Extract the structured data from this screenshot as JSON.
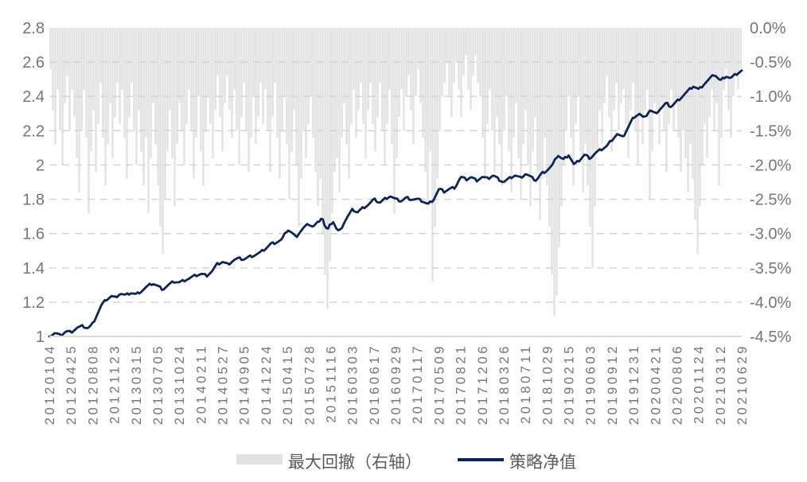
{
  "colors": {
    "background": "#ffffff",
    "drawdown_bar": "#e2e2e2",
    "net_value_line": "#0e2356",
    "gridline": "#d2d2d2",
    "axis_line": "#d9d9d9",
    "axis_label": "#757575",
    "legend_text": "#5a5a5a"
  },
  "chart_data": {
    "type": "line+bar",
    "title": "",
    "grid": "dashed horizontal",
    "legend_position": "bottom-center",
    "legend": [
      {
        "label": "最大回撤（右轴）",
        "series_type": "bar",
        "axis": "right"
      },
      {
        "label": "策略净值",
        "series_type": "line",
        "axis": "left"
      }
    ],
    "left_axis": {
      "min": 1.0,
      "max": 2.8,
      "step": 0.2,
      "ticks": [
        "2.8",
        "2.6",
        "2.4",
        "2.2",
        "2",
        "1.8",
        "1.6",
        "1.4",
        "1.2",
        "1"
      ]
    },
    "right_axis": {
      "min": -4.5,
      "max": 0.0,
      "step": -0.5,
      "unit": "%",
      "ticks": [
        "0.0%",
        "-0.5%",
        "-1.0%",
        "-1.5%",
        "-2.0%",
        "-2.5%",
        "-3.0%",
        "-3.5%",
        "-4.0%",
        "-4.5%"
      ]
    },
    "x_labels": [
      "20120104",
      "20120425",
      "20120808",
      "20121123",
      "20130315",
      "20130705",
      "20131024",
      "20140211",
      "20140527",
      "20140905",
      "20141224",
      "20150415",
      "20150728",
      "20151116",
      "20160303",
      "20160617",
      "20160929",
      "20170117",
      "20170509",
      "20170821",
      "20171206",
      "20180326",
      "20180711",
      "20181029",
      "20190215",
      "20190603",
      "20190912",
      "20191231",
      "20200421",
      "20200806",
      "20201124",
      "20210312",
      "20210629"
    ],
    "net_value": {
      "name": "策略净值",
      "points": [
        [
          0.0,
          1.0
        ],
        [
          0.008,
          1.02
        ],
        [
          0.016,
          1.005
        ],
        [
          0.024,
          1.03
        ],
        [
          0.031,
          1.025
        ],
        [
          0.04,
          1.05
        ],
        [
          0.048,
          1.06
        ],
        [
          0.056,
          1.048
        ],
        [
          0.062,
          1.07
        ],
        [
          0.068,
          1.12
        ],
        [
          0.075,
          1.18
        ],
        [
          0.082,
          1.215
        ],
        [
          0.09,
          1.235
        ],
        [
          0.094,
          1.225
        ],
        [
          0.102,
          1.25
        ],
        [
          0.11,
          1.24
        ],
        [
          0.118,
          1.255
        ],
        [
          0.125,
          1.245
        ],
        [
          0.133,
          1.265
        ],
        [
          0.141,
          1.29
        ],
        [
          0.149,
          1.31
        ],
        [
          0.156,
          1.295
        ],
        [
          0.164,
          1.275
        ],
        [
          0.172,
          1.3
        ],
        [
          0.18,
          1.32
        ],
        [
          0.188,
          1.315
        ],
        [
          0.196,
          1.33
        ],
        [
          0.203,
          1.34
        ],
        [
          0.211,
          1.355
        ],
        [
          0.219,
          1.365
        ],
        [
          0.227,
          1.355
        ],
        [
          0.235,
          1.38
        ],
        [
          0.242,
          1.42
        ],
        [
          0.25,
          1.435
        ],
        [
          0.258,
          1.42
        ],
        [
          0.266,
          1.445
        ],
        [
          0.273,
          1.455
        ],
        [
          0.281,
          1.45
        ],
        [
          0.289,
          1.465
        ],
        [
          0.297,
          1.475
        ],
        [
          0.305,
          1.49
        ],
        [
          0.313,
          1.515
        ],
        [
          0.32,
          1.54
        ],
        [
          0.328,
          1.55
        ],
        [
          0.336,
          1.565
        ],
        [
          0.344,
          1.625
        ],
        [
          0.35,
          1.605
        ],
        [
          0.356,
          1.58
        ],
        [
          0.363,
          1.615
        ],
        [
          0.369,
          1.64
        ],
        [
          0.375,
          1.655
        ],
        [
          0.381,
          1.64
        ],
        [
          0.388,
          1.665
        ],
        [
          0.394,
          1.7
        ],
        [
          0.398,
          1.64
        ],
        [
          0.402,
          1.62
        ],
        [
          0.406,
          1.655
        ],
        [
          0.41,
          1.67
        ],
        [
          0.415,
          1.625
        ],
        [
          0.419,
          1.61
        ],
        [
          0.425,
          1.66
        ],
        [
          0.431,
          1.7
        ],
        [
          0.438,
          1.74
        ],
        [
          0.445,
          1.725
        ],
        [
          0.453,
          1.75
        ],
        [
          0.461,
          1.77
        ],
        [
          0.469,
          1.8
        ],
        [
          0.477,
          1.78
        ],
        [
          0.484,
          1.8
        ],
        [
          0.492,
          1.82
        ],
        [
          0.5,
          1.8
        ],
        [
          0.508,
          1.79
        ],
        [
          0.516,
          1.81
        ],
        [
          0.523,
          1.8
        ],
        [
          0.531,
          1.8
        ],
        [
          0.539,
          1.79
        ],
        [
          0.547,
          1.77
        ],
        [
          0.555,
          1.8
        ],
        [
          0.563,
          1.86
        ],
        [
          0.57,
          1.845
        ],
        [
          0.578,
          1.86
        ],
        [
          0.586,
          1.87
        ],
        [
          0.594,
          1.93
        ],
        [
          0.602,
          1.915
        ],
        [
          0.609,
          1.93
        ],
        [
          0.617,
          1.91
        ],
        [
          0.625,
          1.93
        ],
        [
          0.633,
          1.92
        ],
        [
          0.641,
          1.94
        ],
        [
          0.648,
          1.92
        ],
        [
          0.656,
          1.9
        ],
        [
          0.664,
          1.92
        ],
        [
          0.672,
          1.94
        ],
        [
          0.68,
          1.925
        ],
        [
          0.688,
          1.95
        ],
        [
          0.695,
          1.93
        ],
        [
          0.703,
          1.91
        ],
        [
          0.711,
          1.95
        ],
        [
          0.719,
          1.97
        ],
        [
          0.727,
          2.0
        ],
        [
          0.734,
          2.06
        ],
        [
          0.742,
          2.03
        ],
        [
          0.75,
          2.06
        ],
        [
          0.758,
          2.0
        ],
        [
          0.766,
          2.03
        ],
        [
          0.773,
          2.06
        ],
        [
          0.781,
          2.04
        ],
        [
          0.789,
          2.07
        ],
        [
          0.797,
          2.09
        ],
        [
          0.805,
          2.11
        ],
        [
          0.813,
          2.15
        ],
        [
          0.82,
          2.18
        ],
        [
          0.828,
          2.16
        ],
        [
          0.836,
          2.22
        ],
        [
          0.844,
          2.28
        ],
        [
          0.852,
          2.3
        ],
        [
          0.859,
          2.27
        ],
        [
          0.867,
          2.32
        ],
        [
          0.875,
          2.3
        ],
        [
          0.883,
          2.33
        ],
        [
          0.891,
          2.36
        ],
        [
          0.898,
          2.34
        ],
        [
          0.906,
          2.37
        ],
        [
          0.914,
          2.4
        ],
        [
          0.922,
          2.43
        ],
        [
          0.93,
          2.46
        ],
        [
          0.938,
          2.44
        ],
        [
          0.945,
          2.47
        ],
        [
          0.953,
          2.5
        ],
        [
          0.961,
          2.53
        ],
        [
          0.969,
          2.49
        ],
        [
          0.977,
          2.52
        ],
        [
          0.984,
          2.505
        ],
        [
          0.992,
          2.53
        ],
        [
          1.0,
          2.55
        ]
      ]
    },
    "drawdown": {
      "name": "最大回撤（右轴）",
      "unit": "%",
      "values": [
        -0.6,
        -1.2,
        -1.7,
        -0.9,
        -1.5,
        -2.0,
        -1.1,
        -0.7,
        -1.5,
        -0.9,
        -1.3,
        -1.9,
        -2.4,
        -1.5,
        -0.9,
        -1.6,
        -2.7,
        -1.8,
        -1.2,
        -2.1,
        -1.4,
        -0.8,
        -1.6,
        -2.3,
        -1.7,
        -1.1,
        -1.9,
        -1.3,
        -0.8,
        -1.4,
        -0.9,
        -1.6,
        -2.2,
        -1.3,
        -0.8,
        -1.5,
        -2.0,
        -1.2,
        -1.8,
        -2.3,
        -1.6,
        -2.7,
        -1.9,
        -1.1,
        -1.7,
        -2.3,
        -2.9,
        -3.3,
        -2.5,
        -1.8,
        -1.2,
        -1.9,
        -2.6,
        -1.7,
        -1.1,
        -1.5,
        -2.0,
        -1.4,
        -0.9,
        -1.5,
        -2.2,
        -1.6,
        -1.0,
        -1.8,
        -2.3,
        -1.5,
        -1.0,
        -1.4,
        -1.9,
        -1.2,
        -0.7,
        -1.3,
        -1.8,
        -1.1,
        -0.7,
        -1.2,
        -1.6,
        -0.9,
        -1.5,
        -2.0,
        -1.3,
        -0.8,
        -1.5,
        -2.1,
        -1.6,
        -1.0,
        -1.7,
        -1.3,
        -0.8,
        -1.4,
        -0.9,
        -1.5,
        -2.1,
        -1.3,
        -0.8,
        -1.6,
        -2.2,
        -1.5,
        -1.0,
        -1.7,
        -2.5,
        -1.8,
        -1.2,
        -2.0,
        -2.9,
        -2.2,
        -1.5,
        -1.9,
        -1.4,
        -1.0,
        -1.6,
        -2.1,
        -2.6,
        -2.2,
        -3.0,
        -3.6,
        -4.1,
        -3.4,
        -2.7,
        -2.1,
        -1.9,
        -2.4,
        -1.6,
        -1.1,
        -1.7,
        -2.2,
        -1.4,
        -0.9,
        -1.6,
        -1.2,
        -0.8,
        -1.4,
        -1.9,
        -1.2,
        -0.8,
        -1.4,
        -1.8,
        -1.3,
        -0.8,
        -1.5,
        -2.0,
        -1.4,
        -0.9,
        -1.7,
        -2.7,
        -1.9,
        -1.3,
        -0.9,
        -1.5,
        -1.0,
        -0.7,
        -1.2,
        -1.7,
        -1.0,
        -0.6,
        -1.1,
        -1.6,
        -2.1,
        -2.6,
        -1.8,
        -3.7,
        -2.9,
        -2.2,
        -1.5,
        -1.0,
        -0.8,
        -0.5,
        -1.0,
        -1.3,
        -0.8,
        -0.5,
        -0.9,
        -1.3,
        -0.7,
        -0.4,
        -0.9,
        -1.2,
        -0.7,
        -0.4,
        -0.8,
        -1.0,
        -1.6,
        -2.2,
        -1.4,
        -0.9,
        -1.5,
        -2.1,
        -1.3,
        -1.7,
        -2.3,
        -1.5,
        -1.0,
        -1.8,
        -2.4,
        -1.6,
        -1.1,
        -1.9,
        -2.5,
        -1.7,
        -1.2,
        -2.0,
        -2.6,
        -1.8,
        -1.3,
        -2.1,
        -2.8,
        -2.2,
        -1.6,
        -2.3,
        -2.9,
        -3.6,
        -4.2,
        -3.9,
        -3.2,
        -2.6,
        -2.0,
        -1.5,
        -1.0,
        -1.6,
        -2.3,
        -1.4,
        -1.0,
        -1.8,
        -2.4,
        -1.7,
        -2.3,
        -2.9,
        -3.5,
        -2.6,
        -1.8,
        -1.2,
        -1.7,
        -1.1,
        -0.7,
        -1.3,
        -1.8,
        -1.2,
        -0.8,
        -1.5,
        -1.1,
        -0.9,
        -1.4,
        -1.9,
        -1.2,
        -0.8,
        -1.5,
        -2.0,
        -1.3,
        -1.7,
        -1.2,
        -0.9,
        -2.5,
        -1.8,
        -1.1,
        -1.2,
        -1.7,
        -1.1,
        -1.5,
        -2.1,
        -1.4,
        -0.9,
        -1.5,
        -1.1,
        -1.6,
        -2.1,
        -1.5,
        -1.9,
        -2.4,
        -1.7,
        -2.2,
        -2.8,
        -3.3,
        -2.6,
        -2.0,
        -1.4,
        -1.9,
        -1.3,
        -0.9,
        -1.5,
        -1.1,
        -2.3,
        -1.6,
        -0.9,
        -0.6,
        -1.2,
        -1.6,
        -1.0,
        -0.7,
        -0.9,
        -0.6
      ]
    }
  }
}
